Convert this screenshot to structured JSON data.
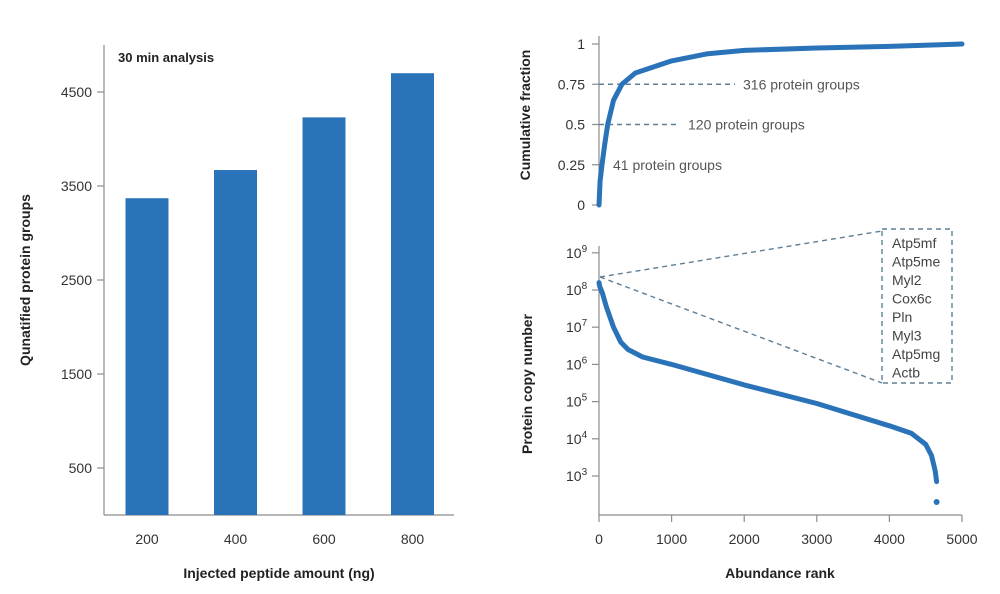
{
  "colors": {
    "bar": "#2b73b8",
    "curve": "#2b73b8",
    "dash": "#5f7f94"
  },
  "chart_data": [
    {
      "type": "bar",
      "title": "30 min analysis",
      "xlabel": "Injected peptide amount (ng)",
      "ylabel": "Qunatified protein groups",
      "categories": [
        "200",
        "400",
        "600",
        "800"
      ],
      "values": [
        3370,
        3670,
        4230,
        4700
      ],
      "ylim": [
        0,
        5000
      ],
      "yticks": [
        "500",
        "1500",
        "2500",
        "3500",
        "4500"
      ],
      "grid": false
    },
    {
      "type": "line",
      "xlabel": "",
      "ylabel": "Cumulative fraction",
      "xlim": [
        0,
        5000
      ],
      "ylim": [
        0,
        1
      ],
      "yticks": [
        "0",
        "0.25",
        "0.5",
        "0.75",
        "1"
      ],
      "x": [
        0,
        15,
        41,
        80,
        120,
        200,
        316,
        500,
        1000,
        1500,
        2000,
        3000,
        4000,
        4700,
        5000
      ],
      "y": [
        0,
        0.15,
        0.25,
        0.38,
        0.5,
        0.65,
        0.75,
        0.82,
        0.895,
        0.94,
        0.96,
        0.975,
        0.985,
        0.995,
        1.0
      ],
      "annotations": [
        {
          "label": "41 protein groups",
          "x": 41,
          "y": 0.25
        },
        {
          "label": "120 protein groups",
          "x": 120,
          "y": 0.5
        },
        {
          "label": "316 protein groups",
          "x": 316,
          "y": 0.75
        }
      ],
      "grid": false
    },
    {
      "type": "line",
      "xlabel": "Abundance rank",
      "ylabel": "Protein copy number",
      "xlim": [
        0,
        5000
      ],
      "ylim_log10": [
        2.3,
        9
      ],
      "log_scale_y": true,
      "xticks": [
        "0",
        "1000",
        "2000",
        "3000",
        "4000",
        "5000"
      ],
      "yticks": [
        {
          "base": "10",
          "exp": "3"
        },
        {
          "base": "10",
          "exp": "4"
        },
        {
          "base": "10",
          "exp": "5"
        },
        {
          "base": "10",
          "exp": "6"
        },
        {
          "base": "10",
          "exp": "7"
        },
        {
          "base": "10",
          "exp": "8"
        },
        {
          "base": "10",
          "exp": "9"
        }
      ],
      "x": [
        0,
        10,
        50,
        100,
        200,
        300,
        400,
        600,
        1000,
        2000,
        3000,
        4000,
        4300,
        4500,
        4580,
        4630,
        4650
      ],
      "y_log10": [
        8.2,
        8.1,
        7.9,
        7.55,
        7.0,
        6.6,
        6.4,
        6.2,
        6.0,
        5.45,
        4.95,
        4.35,
        4.15,
        3.85,
        3.55,
        3.15,
        2.85
      ],
      "outlier": {
        "x": 4650,
        "y_log10": 2.3
      },
      "top_proteins": [
        "Atp5mf",
        "Atp5me",
        "Myl2",
        "Cox6c",
        "Pln",
        "Myl3",
        "Atp5mg",
        "Actb"
      ],
      "grid": false
    }
  ]
}
